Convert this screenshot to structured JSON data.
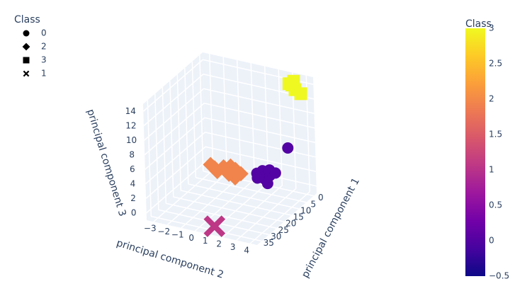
{
  "chart_data": {
    "type": "scatter3d",
    "legend_title": "Class",
    "xaxis_title": "principal component 1",
    "yaxis_title": "principal component 2",
    "zaxis_title": "principal component 3",
    "xlim": [
      -2,
      38
    ],
    "ylim": [
      -3.5,
      4.5
    ],
    "zlim": [
      -1,
      15
    ],
    "xticks": [
      0,
      5,
      10,
      15,
      20,
      25,
      30,
      35
    ],
    "yticks": [
      {
        "value": -3,
        "label": "−3"
      },
      {
        "value": -2,
        "label": "−2"
      },
      {
        "value": -1,
        "label": "−1"
      },
      0,
      1,
      2,
      3,
      4
    ],
    "zticks": [
      0,
      2,
      4,
      6,
      8,
      10,
      12,
      14
    ],
    "grid": true,
    "legend_position": "top-left",
    "series": [
      {
        "name": "0",
        "symbol": "circle",
        "color": "#5302a3",
        "x": [
          17,
          16,
          18,
          19,
          17.5,
          20,
          15,
          18.5,
          16.5,
          14
        ],
        "y": [
          2.3,
          2.6,
          2.8,
          3.1,
          3.3,
          3.4,
          3.0,
          2.5,
          3.6,
          4.28
        ],
        "z": [
          4.2,
          4.5,
          4.0,
          4.1,
          4.4,
          3.8,
          4.6,
          3.9,
          4.7,
          8
        ]
      },
      {
        "name": "2",
        "symbol": "diamond",
        "color": "#f0844c",
        "x": [
          22,
          23,
          24,
          22.5,
          23.5,
          24.5,
          22,
          25,
          23,
          21.5
        ],
        "y": [
          -0.5,
          -0.1,
          0.2,
          0.5,
          0.8,
          1.1,
          1.3,
          1.6,
          1.8,
          0.9
        ],
        "z": [
          5.1,
          5.0,
          4.8,
          5.3,
          5.0,
          4.9,
          5.2,
          4.7,
          5.0,
          5.4
        ]
      },
      {
        "name": "3",
        "symbol": "square",
        "color": "#eff821",
        "x": [
          -0.5,
          0.2,
          1,
          -0.8,
          0.5
        ],
        "y": [
          3.1,
          3.4,
          3.9,
          3.2,
          3.0
        ],
        "z": [
          13.6,
          13.2,
          13.0,
          14.1,
          13.9
        ]
      },
      {
        "name": "1",
        "symbol": "x",
        "color": "#bd3786",
        "x": [
          36.8
        ],
        "y": [
          1.3
        ],
        "z": [
          0
        ]
      }
    ],
    "colorbar": {
      "title": "Class",
      "clim": [
        -0.5,
        3
      ],
      "ticks": [
        {
          "value": -0.5,
          "label": "−0.5"
        },
        0,
        0.5,
        1,
        1.5,
        2,
        2.5,
        3
      ],
      "colorscale": [
        "#0d0887",
        "#46039f",
        "#7201a8",
        "#9c179e",
        "#bd3786",
        "#d8576b",
        "#ed7953",
        "#fb9f3a",
        "#fdca26",
        "#f0f921"
      ]
    }
  }
}
